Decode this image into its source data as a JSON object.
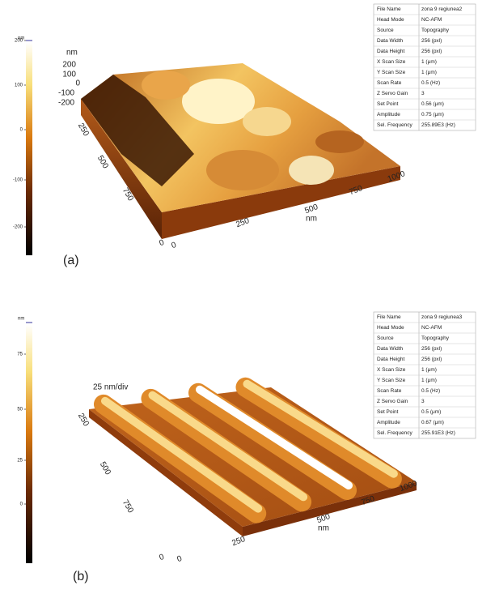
{
  "panels": [
    {
      "label": "(a)",
      "colorbar": {
        "unit": "nm",
        "ticks": [
          "200",
          "100",
          "0",
          "-100",
          "-200"
        ]
      },
      "z_axis": {
        "unit": "nm",
        "ticks": [
          "200",
          "100",
          "0",
          "-100",
          "-200"
        ]
      },
      "x_axis": {
        "ticks": [
          "0",
          "250",
          "500",
          "750",
          "1000"
        ],
        "unit": "nm"
      },
      "y_axis": {
        "ticks": [
          "0",
          "250",
          "500",
          "750"
        ]
      },
      "info": [
        [
          "File Name",
          "zona 9 regiunea2"
        ],
        [
          "Head Mode",
          "NC-AFM"
        ],
        [
          "Source",
          "Topography"
        ],
        [
          "Data Width",
          "256 (pxl)"
        ],
        [
          "Data Height",
          "256 (pxl)"
        ],
        [
          "X Scan Size",
          "1 (μm)"
        ],
        [
          "Y Scan Size",
          "1 (μm)"
        ],
        [
          "Scan Rate",
          "0.5 (Hz)"
        ],
        [
          "Z Servo Gain",
          "3"
        ],
        [
          "Set Point",
          "0.56 (μm)"
        ],
        [
          "Amplitude",
          "0.75 (μm)"
        ],
        [
          "Sel. Frequency",
          "255.89E3 (Hz)"
        ]
      ]
    },
    {
      "label": "(b)",
      "colorbar": {
        "unit": "nm",
        "ticks": [
          "75",
          "50",
          "25",
          "0"
        ]
      },
      "z_axis": {
        "unit": "25 nm/div"
      },
      "x_axis": {
        "ticks": [
          "0",
          "250",
          "500",
          "750",
          "1000"
        ],
        "unit": "nm"
      },
      "y_axis": {
        "ticks": [
          "0",
          "250",
          "500",
          "750"
        ]
      },
      "info": [
        [
          "File Name",
          "zona 9 regiunea3"
        ],
        [
          "Head Mode",
          "NC-AFM"
        ],
        [
          "Source",
          "Topography"
        ],
        [
          "Data Width",
          "256 (pxl)"
        ],
        [
          "Data Height",
          "256 (pxl)"
        ],
        [
          "X Scan Size",
          "1 (μm)"
        ],
        [
          "Y Scan Size",
          "1 (μm)"
        ],
        [
          "Scan Rate",
          "0.5 (Hz)"
        ],
        [
          "Z Servo Gain",
          "3"
        ],
        [
          "Set Point",
          "0.5 (μm)"
        ],
        [
          "Amplitude",
          "0.67 (μm)"
        ],
        [
          "Sel. Frequency",
          "255.91E3 (Hz)"
        ]
      ]
    }
  ]
}
